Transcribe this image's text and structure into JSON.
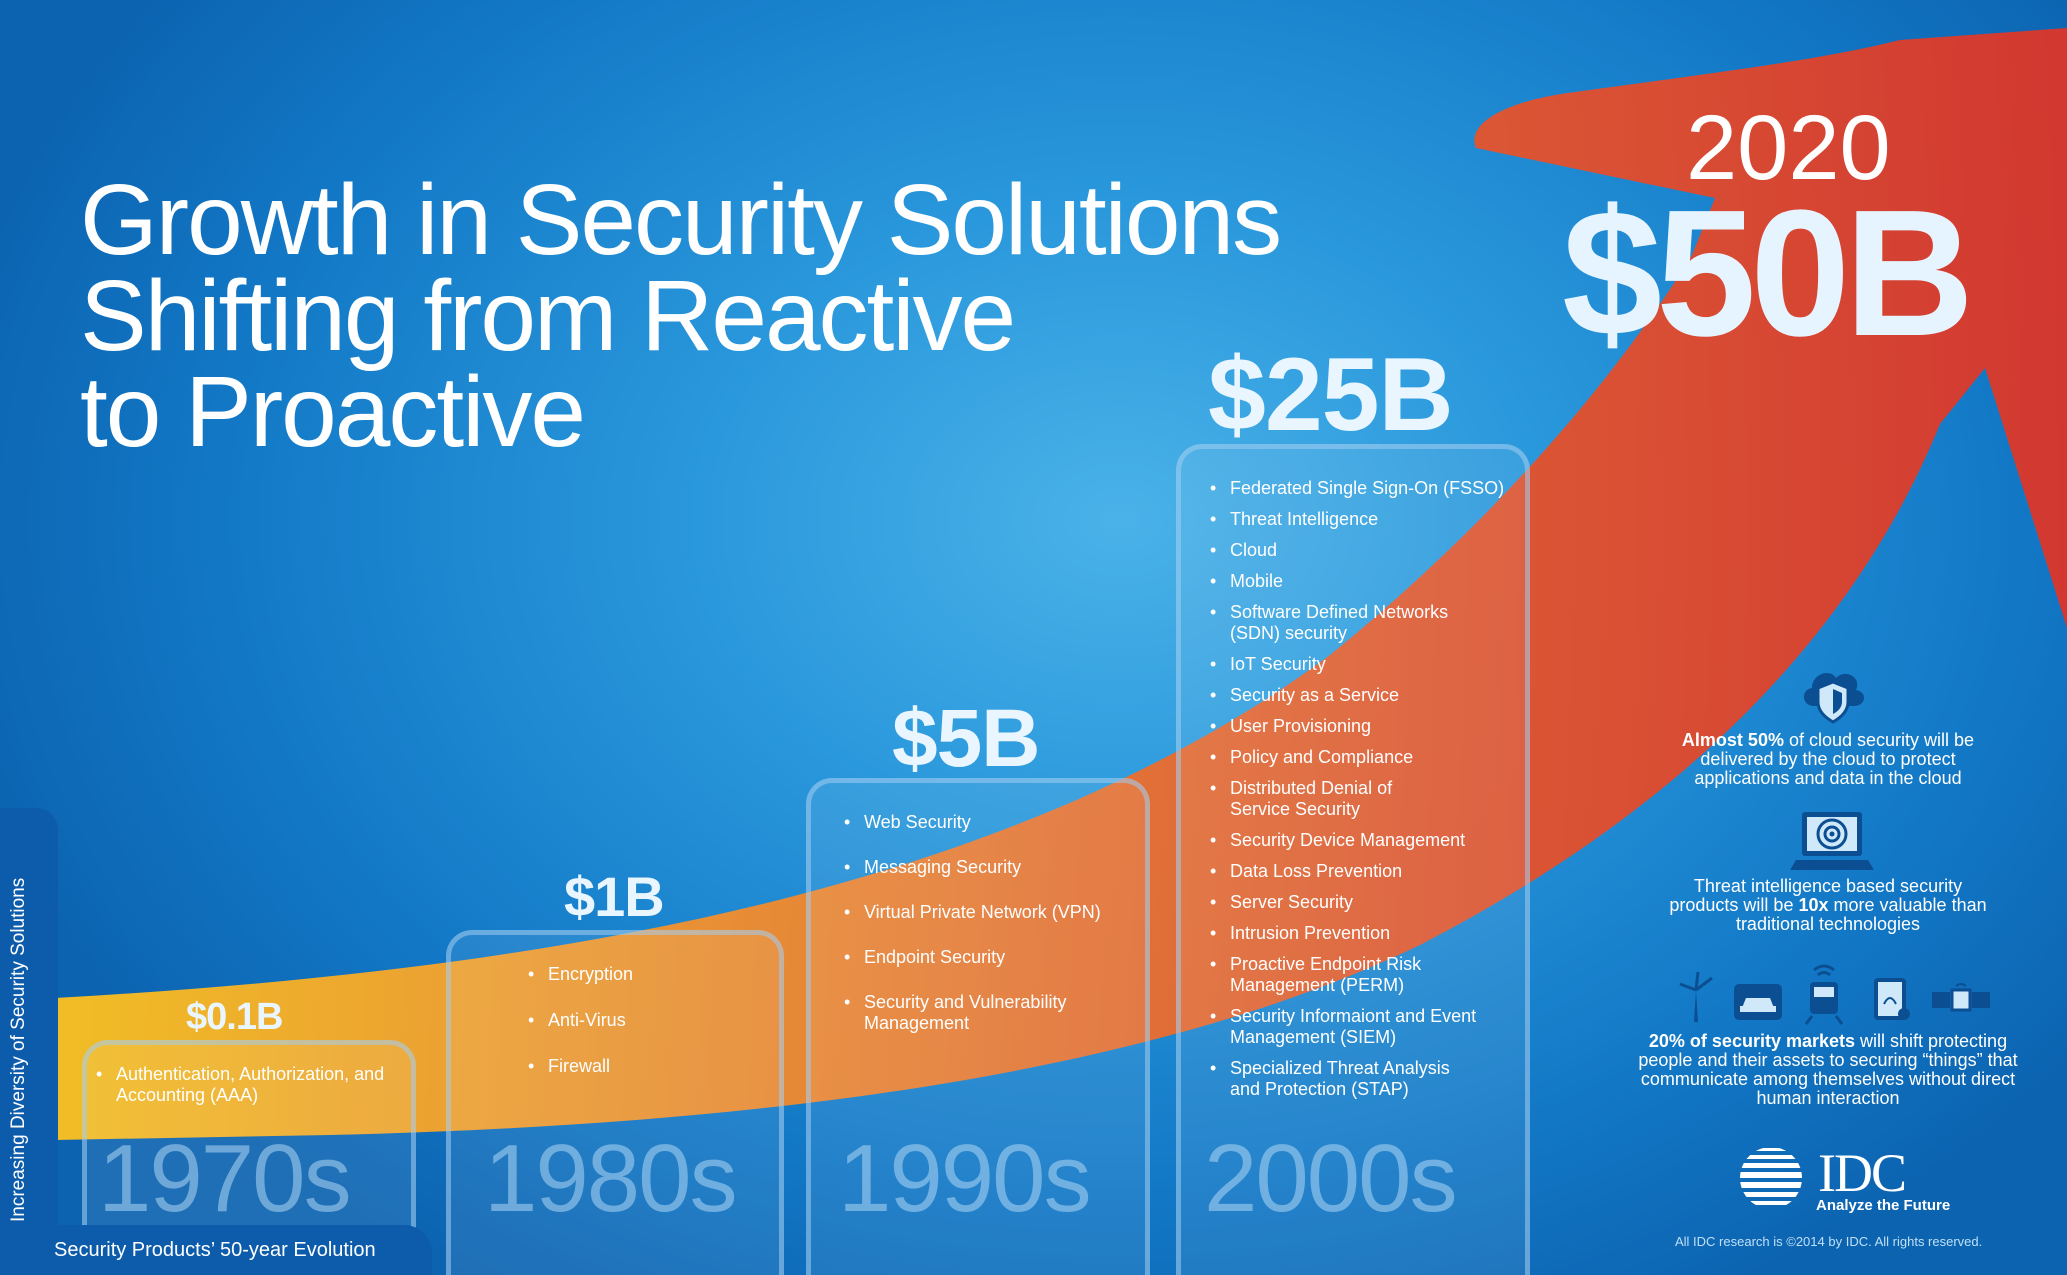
{
  "title_lines": [
    "Growth in Security Solutions",
    "Shifting from Reactive",
    "to Proactive"
  ],
  "side_label": "Increasing Diversity of Security Solutions",
  "bottom_label": "Security Products’ 50-year Evolution",
  "eras": [
    {
      "decade": "1970s",
      "value": "$0.1B",
      "items": [
        "Authentication, Authorization, and Accounting (AAA)"
      ]
    },
    {
      "decade": "1980s",
      "value": "$1B",
      "items": [
        "Encryption",
        "Anti-Virus",
        "Firewall"
      ]
    },
    {
      "decade": "1990s",
      "value": "$5B",
      "items": [
        "Web Security",
        "Messaging Security",
        "Virtual Private Network (VPN)",
        "Endpoint Security",
        "Security and Vulnerability Management"
      ]
    },
    {
      "decade": "2000s",
      "value": "$25B",
      "items": [
        "Federated Single Sign-On (FSSO)",
        "Threat Intelligence",
        "Cloud",
        "Mobile",
        "Software Defined Networks (SDN) security",
        "IoT Security",
        "Security as a Service",
        "User Provisioning",
        "Policy and Compliance",
        "Distributed Denial of Service Security",
        "Security Device Management",
        "Data Loss Prevention",
        "Server Security",
        "Intrusion Prevention",
        "Proactive Endpoint Risk Management (PERM)",
        "Security Informaiont and Event Management (SIEM)",
        "Specialized Threat Analysis and Protection (STAP)"
      ]
    }
  ],
  "forecast": {
    "year": "2020",
    "value": "$50B"
  },
  "facts": [
    {
      "bold": "Almost 50%",
      "pre": "",
      "post": " of cloud security will be delivered by the cloud to protect applications and data in the cloud",
      "icon": "cloud-shield-icon"
    },
    {
      "pre": "Threat intelligence based security products will be ",
      "bold": "10x",
      "post": " more valuable than traditional technologies",
      "icon": "monitor-target-icon"
    },
    {
      "bold": "20% of security markets",
      "pre": "",
      "post": " will shift protecting people and their assets to securing “things” that communicate among themselves without direct human interaction",
      "icons": [
        "wind-turbine-icon",
        "car-icon",
        "train-icon",
        "smartwatch-icon",
        "satellite-icon"
      ]
    }
  ],
  "logo": {
    "name": "IDC",
    "tagline": "Analyze the Future",
    "icon": "idc-globe-icon"
  },
  "copyright": "All IDC research is ©2014 by IDC. All rights reserved.",
  "colors": {
    "background": "#1682d0",
    "arrow_start": "#fdc21e",
    "arrow_mid": "#f07a2a",
    "arrow_end": "#dc3529",
    "panel": "#0d5cab"
  }
}
